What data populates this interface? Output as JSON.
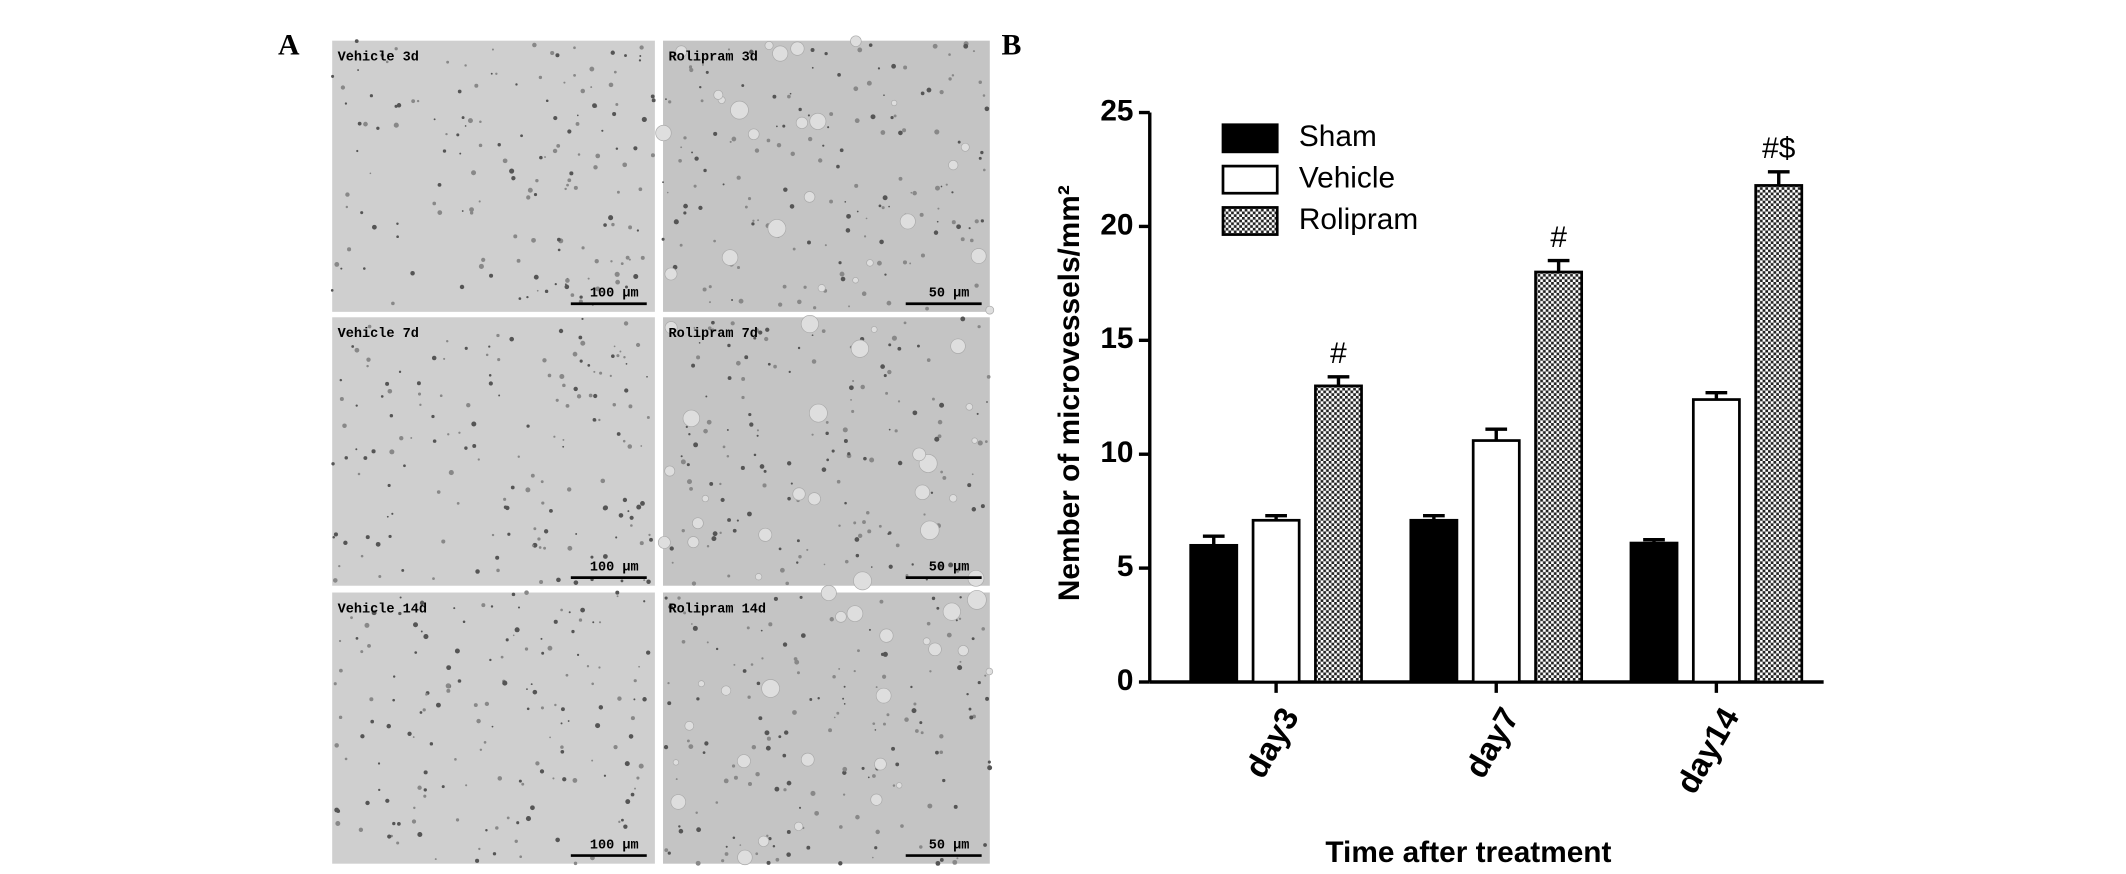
{
  "panel_a": {
    "label": "A",
    "images": [
      {
        "label": "Vehicle 3d",
        "scale_bar": "100 μm"
      },
      {
        "label": "Rolipram 3d",
        "scale_bar": "50 μm"
      },
      {
        "label": "Vehicle 7d",
        "scale_bar": "100 μm"
      },
      {
        "label": "Rolipram 7d",
        "scale_bar": "50 μm"
      },
      {
        "label": "Vehicle 14d",
        "scale_bar": "100 μm"
      },
      {
        "label": "Rolipram 14d",
        "scale_bar": "50 μm"
      }
    ]
  },
  "chart_data": {
    "type": "bar",
    "panel_label": "B",
    "x_label": "Time after treatment",
    "y_label": "Nember of microvessels/mm²",
    "categories": [
      "day3",
      "day7",
      "day14"
    ],
    "series": [
      {
        "name": "Sham",
        "color": "#000000",
        "values": [
          6.0,
          7.1,
          6.1
        ],
        "errors": [
          0.4,
          0.2,
          0.15
        ]
      },
      {
        "name": "Vehicle",
        "color": "#ffffff",
        "values": [
          7.1,
          10.6,
          12.4
        ],
        "errors": [
          0.2,
          0.5,
          0.3
        ]
      },
      {
        "name": "Rolipram",
        "color": "#9a9a9a",
        "hatch": true,
        "values": [
          13.0,
          18.0,
          21.8
        ],
        "errors": [
          0.4,
          0.5,
          0.6
        ],
        "annotations": [
          "#",
          "#",
          "#$"
        ]
      }
    ],
    "ylim": [
      0,
      25
    ],
    "yticks": [
      0,
      5,
      10,
      15,
      20,
      25
    ],
    "legend": "upper left"
  }
}
